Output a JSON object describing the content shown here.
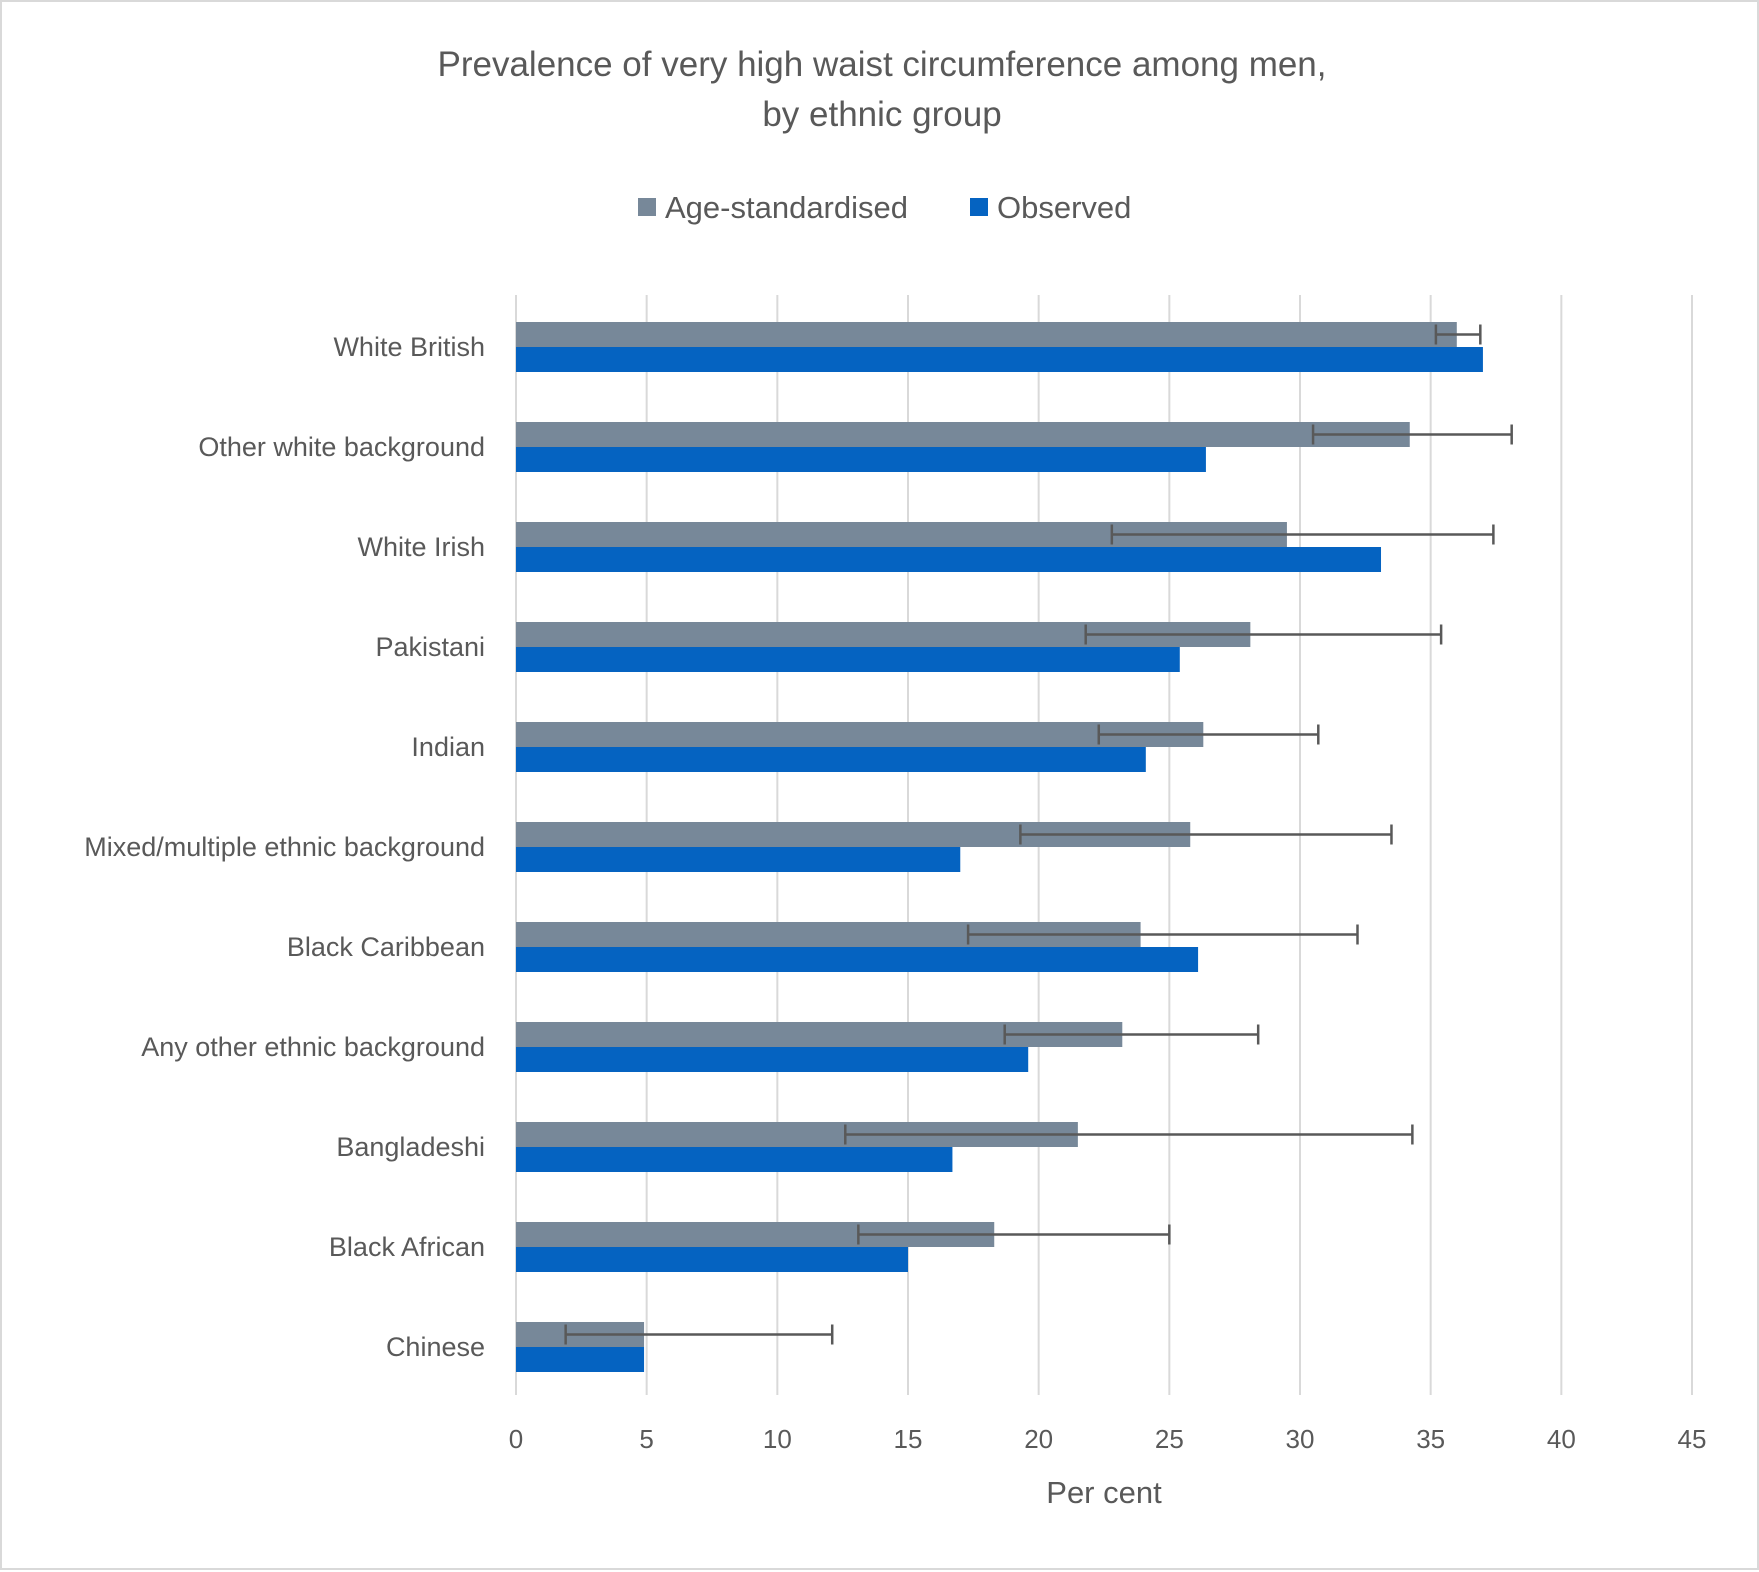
{
  "chart_data": {
    "type": "bar",
    "orientation": "horizontal",
    "title_lines": [
      "Prevalence of very high waist circumference among men,",
      "by ethnic group"
    ],
    "xlabel": "Per cent",
    "ylabel": "",
    "xlim": [
      0,
      45
    ],
    "xticks": [
      0,
      5,
      10,
      15,
      20,
      25,
      30,
      35,
      40,
      45
    ],
    "grid": "vertical",
    "legend_position": "top",
    "categories": [
      "White British",
      "Other white background",
      "White Irish",
      "Pakistani",
      "Indian",
      "Mixed/multiple ethnic background",
      "Black Caribbean",
      "Any other ethnic background",
      "Bangladeshi",
      "Black African",
      "Chinese"
    ],
    "series": [
      {
        "name": "Age-standardised",
        "color": "#778899",
        "values": [
          36.0,
          34.2,
          29.5,
          28.1,
          26.3,
          25.8,
          23.9,
          23.2,
          21.5,
          18.3,
          4.9
        ],
        "error_low": [
          35.2,
          30.5,
          22.8,
          21.8,
          22.3,
          19.3,
          17.3,
          18.7,
          12.6,
          13.1,
          1.9
        ],
        "error_high": [
          36.9,
          38.1,
          37.4,
          35.4,
          30.7,
          33.5,
          32.2,
          28.4,
          34.3,
          25.0,
          12.1
        ]
      },
      {
        "name": "Observed",
        "color": "#0563c1",
        "values": [
          37.0,
          26.4,
          33.1,
          25.4,
          24.1,
          17.0,
          26.1,
          19.6,
          16.7,
          15.0,
          4.9
        ]
      }
    ]
  }
}
